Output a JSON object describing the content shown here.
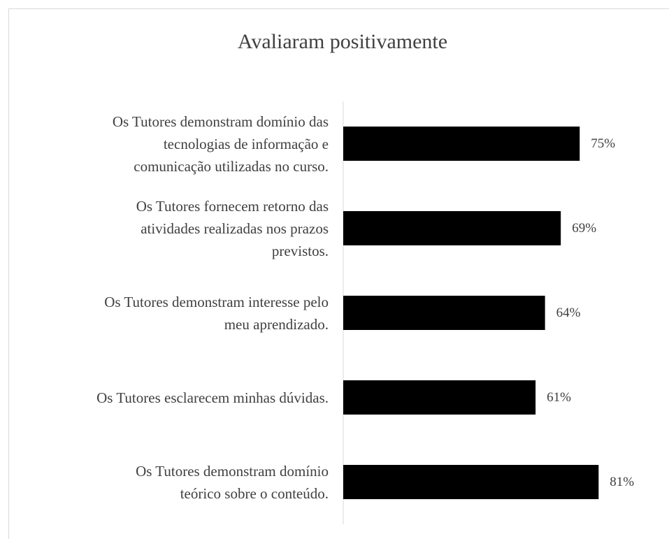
{
  "chart_data": {
    "type": "bar",
    "orientation": "horizontal",
    "title": "Avaliaram positivamente",
    "categories": [
      "Os Tutores demonstram domínio das\ntecnologias de informação e\ncomunicação utilizadas no curso.",
      "Os Tutores fornecem retorno das\natividades realizadas nos prazos\nprevistos.",
      "Os Tutores demonstram interesse pelo\nmeu aprendizado.",
      "Os Tutores esclarecem minhas dúvidas.",
      "Os Tutores demonstram domínio\nteórico sobre o conteúdo."
    ],
    "values": [
      75,
      69,
      64,
      61,
      81
    ],
    "value_labels": [
      "75%",
      "69%",
      "64%",
      "61%",
      "81%"
    ],
    "color": "#000000",
    "xlim": [
      0,
      100
    ]
  }
}
